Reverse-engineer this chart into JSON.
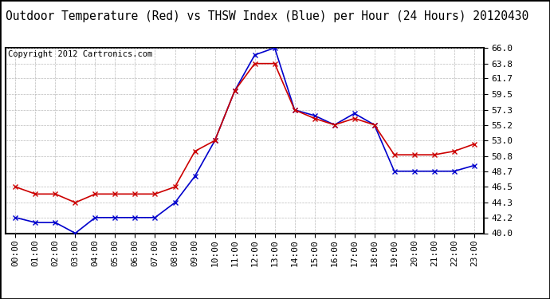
{
  "title": "Outdoor Temperature (Red) vs THSW Index (Blue) per Hour (24 Hours) 20120430",
  "copyright": "Copyright 2012 Cartronics.com",
  "hours": [
    "00:00",
    "01:00",
    "02:00",
    "03:00",
    "04:00",
    "05:00",
    "06:00",
    "07:00",
    "08:00",
    "09:00",
    "10:00",
    "11:00",
    "12:00",
    "13:00",
    "14:00",
    "15:00",
    "16:00",
    "17:00",
    "18:00",
    "19:00",
    "20:00",
    "21:00",
    "22:00",
    "23:00"
  ],
  "red_temp": [
    46.5,
    45.5,
    45.5,
    44.3,
    45.5,
    45.5,
    45.5,
    45.5,
    46.5,
    51.5,
    53.0,
    60.0,
    63.8,
    63.8,
    57.3,
    56.1,
    55.2,
    56.1,
    55.2,
    51.0,
    51.0,
    51.0,
    51.5,
    52.5
  ],
  "blue_thsw": [
    42.2,
    41.5,
    41.5,
    40.0,
    42.2,
    42.2,
    42.2,
    42.2,
    44.3,
    48.0,
    53.0,
    60.0,
    65.0,
    66.0,
    57.3,
    56.5,
    55.2,
    56.8,
    55.2,
    48.7,
    48.7,
    48.7,
    48.7,
    49.5
  ],
  "ylim": [
    40.0,
    66.0
  ],
  "yticks": [
    40.0,
    42.2,
    44.3,
    46.5,
    48.7,
    50.8,
    53.0,
    55.2,
    57.3,
    59.5,
    61.7,
    63.8,
    66.0
  ],
  "red_color": "#cc0000",
  "blue_color": "#0000cc",
  "bg_color": "#ffffff",
  "grid_color": "#aaaaaa",
  "title_fontsize": 10.5,
  "copyright_fontsize": 7.5,
  "tick_fontsize": 8,
  "marker": "x",
  "marker_size": 4,
  "linewidth": 1.2
}
